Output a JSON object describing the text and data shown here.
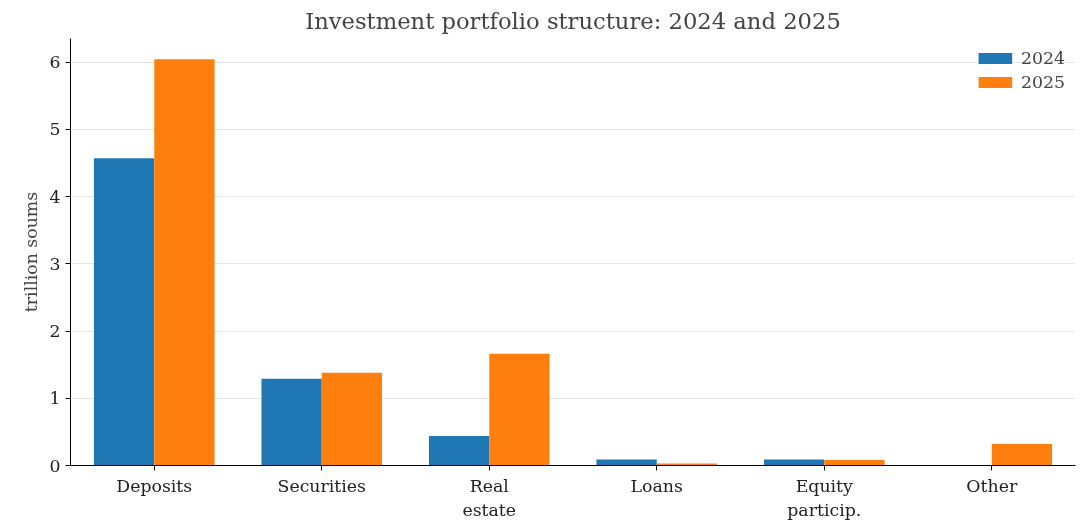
{
  "chart_data": {
    "type": "bar",
    "title": "Investment portfolio structure: 2024 and 2025",
    "ylabel": "trillion soums",
    "categories": [
      "Deposits",
      "Securities",
      "Real estate",
      "Loans",
      "Equity particip.",
      "Other"
    ],
    "series": [
      {
        "name": "2024",
        "color": "#1f77b4",
        "values": [
          4.57,
          1.29,
          0.44,
          0.09,
          0.09,
          0
        ]
      },
      {
        "name": "2025",
        "color": "#ff7f0e",
        "values": [
          6.04,
          1.38,
          1.66,
          0.03,
          0.08,
          0.32
        ]
      }
    ],
    "ylim": [
      0,
      6.35
    ],
    "yticks": [
      0,
      1,
      2,
      3,
      4,
      5,
      6
    ],
    "grid": "y",
    "legend": "top right"
  }
}
